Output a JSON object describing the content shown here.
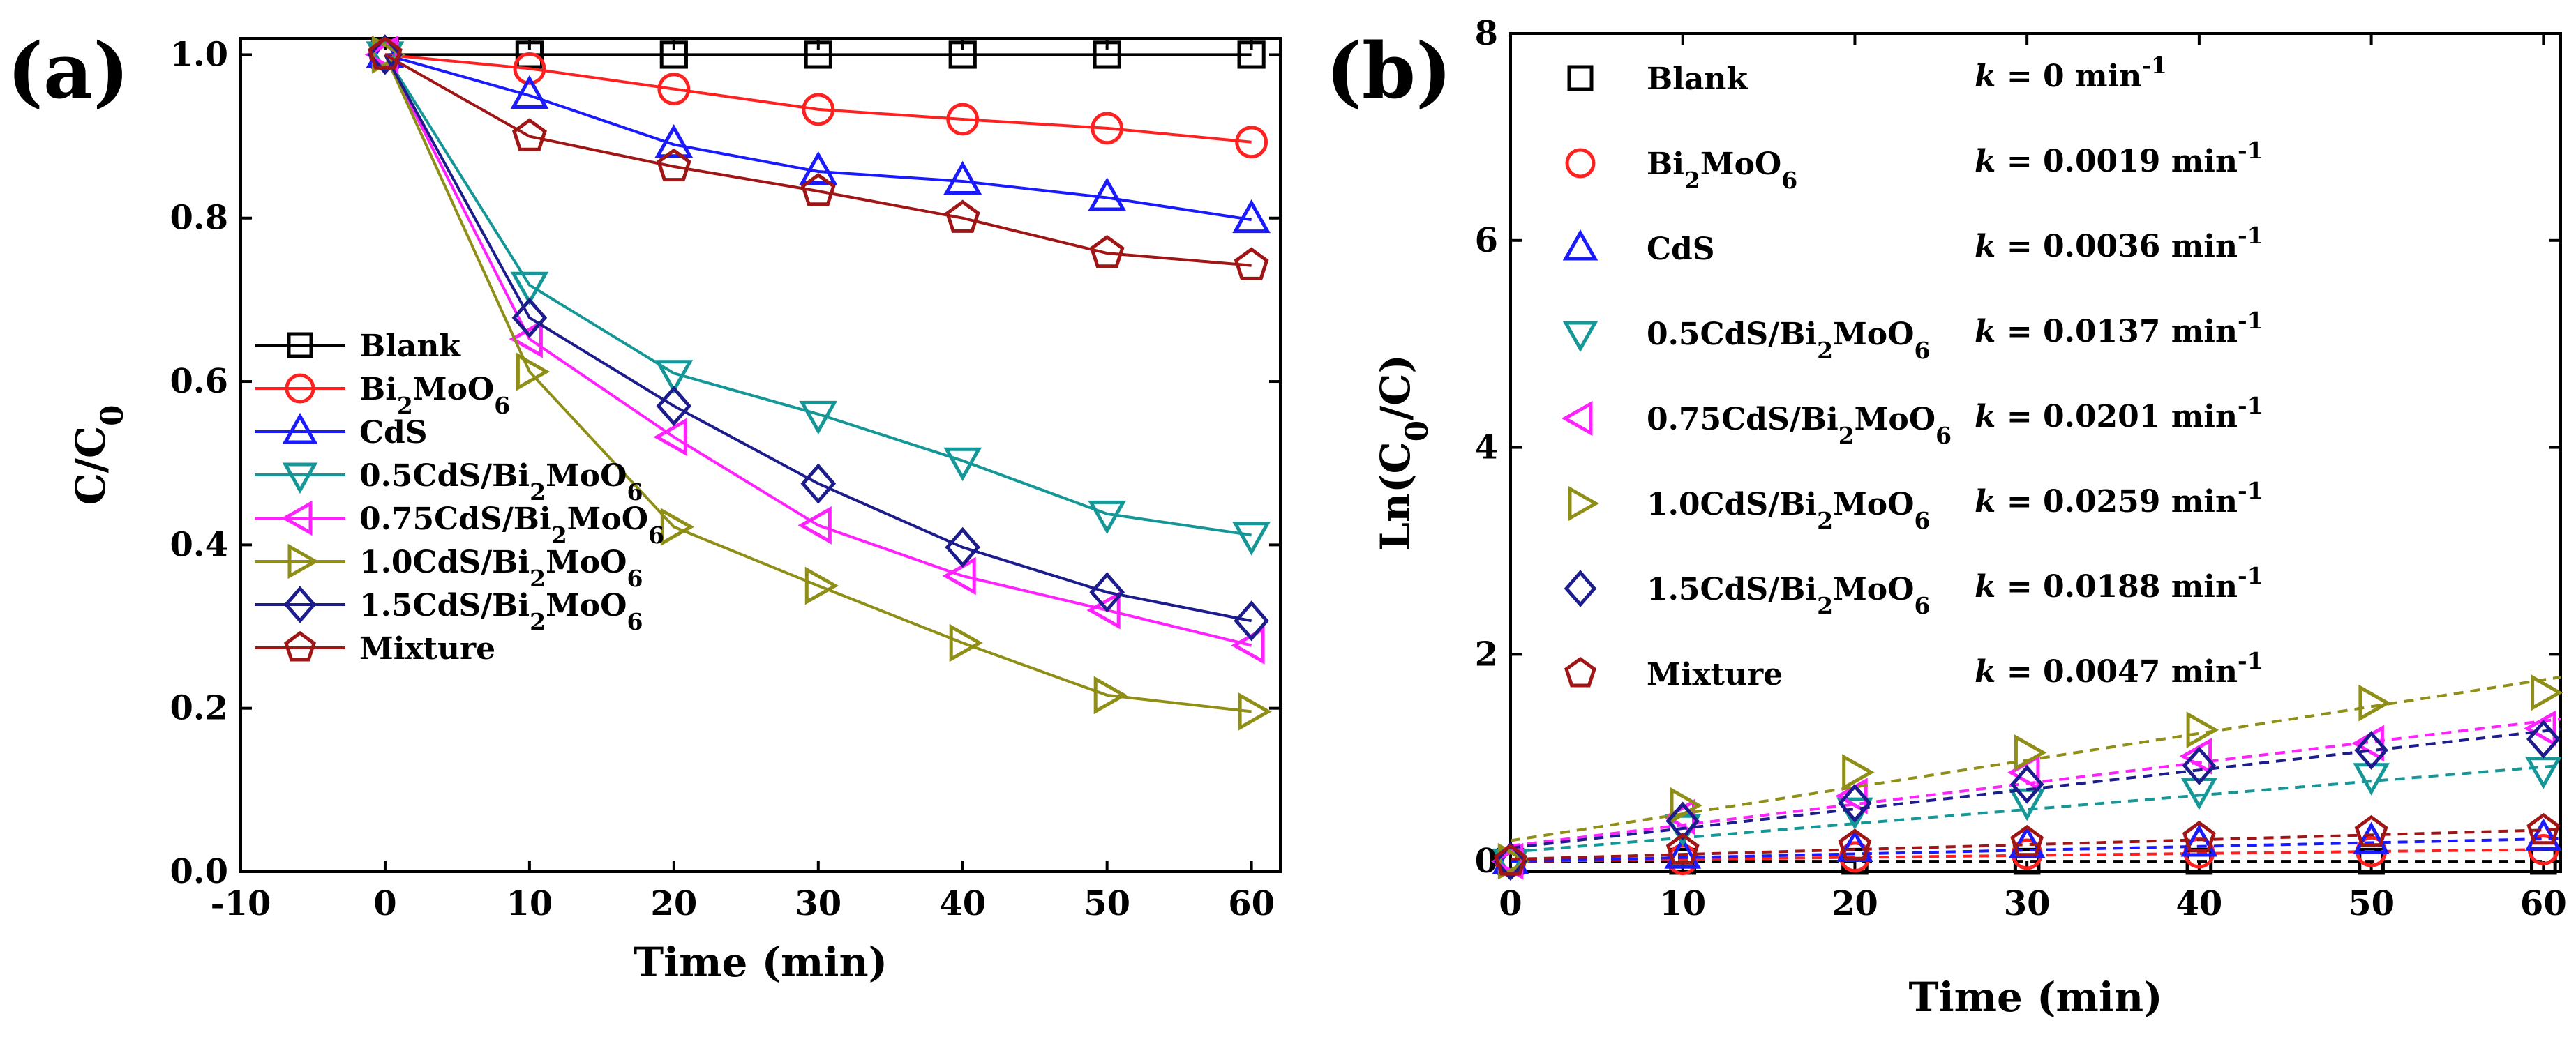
{
  "chart_data": [
    {
      "type": "line",
      "panel_label": "(a)",
      "title": "",
      "xlabel": "Time (min)",
      "ylabel_main": "C/C",
      "ylabel_sub": "0",
      "xlim": [
        -10,
        62
      ],
      "ylim": [
        0.0,
        1.02
      ],
      "xticks": [
        -10,
        0,
        10,
        20,
        30,
        40,
        50,
        60
      ],
      "yticks": [
        0.0,
        0.2,
        0.4,
        0.6,
        0.8,
        1.0
      ],
      "xtick_labels": [
        "-10",
        "0",
        "10",
        "20",
        "30",
        "40",
        "50",
        "60"
      ],
      "ytick_labels": [
        "0.0",
        "0.2",
        "0.4",
        "0.6",
        "0.8",
        "1.0"
      ],
      "x": [
        0,
        10,
        20,
        30,
        40,
        50,
        60
      ],
      "legend_position": "center-left",
      "series": [
        {
          "name": "Blank",
          "name_parts": [
            [
              "Blank",
              "n"
            ]
          ],
          "color": "#000000",
          "marker": "square",
          "values": [
            1.0,
            1.0,
            1.0,
            1.0,
            1.0,
            1.0,
            1.0
          ]
        },
        {
          "name": "Bi2MoO6",
          "name_parts": [
            [
              "Bi",
              "n"
            ],
            [
              "2",
              "s"
            ],
            [
              "MoO",
              "n"
            ],
            [
              "6",
              "s"
            ]
          ],
          "color": "#ff2020",
          "marker": "circle",
          "values": [
            1.0,
            0.983,
            0.958,
            0.933,
            0.921,
            0.91,
            0.893
          ]
        },
        {
          "name": "CdS",
          "name_parts": [
            [
              "CdS",
              "n"
            ]
          ],
          "color": "#1a1aff",
          "marker": "triangle-up",
          "values": [
            1.0,
            0.95,
            0.89,
            0.857,
            0.845,
            0.825,
            0.798
          ]
        },
        {
          "name": "0.5CdS/Bi2MoO6",
          "name_parts": [
            [
              "0.5CdS/Bi",
              "n"
            ],
            [
              "2",
              "s"
            ],
            [
              "MoO",
              "n"
            ],
            [
              "6",
              "s"
            ]
          ],
          "color": "#159797",
          "marker": "triangle-down",
          "values": [
            1.0,
            0.718,
            0.61,
            0.56,
            0.503,
            0.438,
            0.412
          ]
        },
        {
          "name": "0.75CdS/Bi2MoO6",
          "name_parts": [
            [
              "0.75CdS/Bi",
              "n"
            ],
            [
              "2",
              "s"
            ],
            [
              "MoO",
              "n"
            ],
            [
              "6",
              "s"
            ]
          ],
          "color": "#ff22ff",
          "marker": "triangle-left",
          "values": [
            1.0,
            0.652,
            0.532,
            0.424,
            0.362,
            0.32,
            0.277
          ]
        },
        {
          "name": "1.0CdS/Bi2MoO6",
          "name_parts": [
            [
              "1.0CdS/Bi",
              "n"
            ],
            [
              "2",
              "s"
            ],
            [
              "MoO",
              "n"
            ],
            [
              "6",
              "s"
            ]
          ],
          "color": "#8f8f17",
          "marker": "triangle-right",
          "values": [
            1.0,
            0.612,
            0.422,
            0.35,
            0.28,
            0.216,
            0.196
          ]
        },
        {
          "name": "1.5CdS/Bi2MoO6",
          "name_parts": [
            [
              "1.5CdS/Bi",
              "n"
            ],
            [
              "2",
              "s"
            ],
            [
              "MoO",
              "n"
            ],
            [
              "6",
              "s"
            ]
          ],
          "color": "#1c1c8c",
          "marker": "diamond",
          "values": [
            1.0,
            0.678,
            0.57,
            0.475,
            0.397,
            0.342,
            0.307
          ]
        },
        {
          "name": "Mixture",
          "name_parts": [
            [
              "Mixture",
              "n"
            ]
          ],
          "color": "#a01515",
          "marker": "pentagon",
          "values": [
            1.0,
            0.9,
            0.863,
            0.833,
            0.8,
            0.757,
            0.742
          ]
        }
      ]
    },
    {
      "type": "scatter",
      "panel_label": "(b)",
      "title": "",
      "xlabel": "Time (min)",
      "ylabel_parts": [
        [
          "Ln(C",
          "n"
        ],
        [
          "0",
          "s"
        ],
        [
          "/C)",
          "n"
        ]
      ],
      "xlim": [
        0,
        61
      ],
      "ylim": [
        -0.1,
        8
      ],
      "xticks": [
        0,
        10,
        20,
        30,
        40,
        50,
        60
      ],
      "yticks": [
        0,
        2,
        4,
        6,
        8
      ],
      "xtick_labels": [
        "0",
        "10",
        "20",
        "30",
        "40",
        "50",
        "60"
      ],
      "ytick_labels": [
        "0",
        "2",
        "4",
        "6",
        "8"
      ],
      "x": [
        0,
        10,
        20,
        30,
        40,
        50,
        60
      ],
      "legend_position": "top-left",
      "k_unit": "min",
      "k_exponent": "-1",
      "series": [
        {
          "name": "Blank",
          "name_parts": [
            [
              "Blank",
              "n"
            ]
          ],
          "color": "#000000",
          "marker": "square",
          "k_label": "k",
          "k_value": "= 0",
          "fit": {
            "slope": 0.0,
            "intercept": 0.0
          },
          "values": [
            0.0,
            0.0,
            0.0,
            0.0,
            0.0,
            0.0,
            0.0
          ]
        },
        {
          "name": "Bi2MoO6",
          "name_parts": [
            [
              "Bi",
              "n"
            ],
            [
              "2",
              "s"
            ],
            [
              "MoO",
              "n"
            ],
            [
              "6",
              "s"
            ]
          ],
          "color": "#ff2020",
          "marker": "circle",
          "k_label": "k",
          "k_value": "= 0.0019",
          "fit": {
            "slope": 0.0019,
            "intercept": 0.0
          },
          "values": [
            0.0,
            0.017,
            0.043,
            0.069,
            0.082,
            0.094,
            0.113
          ]
        },
        {
          "name": "CdS",
          "name_parts": [
            [
              "CdS",
              "n"
            ]
          ],
          "color": "#1a1aff",
          "marker": "triangle-up",
          "k_label": "k",
          "k_value": "= 0.0036",
          "fit": {
            "slope": 0.0036,
            "intercept": 0.0
          },
          "values": [
            0.0,
            0.051,
            0.117,
            0.154,
            0.168,
            0.192,
            0.226
          ]
        },
        {
          "name": "0.5CdS/Bi2MoO6",
          "name_parts": [
            [
              "0.5CdS/Bi",
              "n"
            ],
            [
              "2",
              "s"
            ],
            [
              "MoO",
              "n"
            ],
            [
              "6",
              "s"
            ]
          ],
          "color": "#159797",
          "marker": "triangle-down",
          "k_label": "k",
          "k_value": "= 0.0137",
          "fit": {
            "slope": 0.0137,
            "intercept": 0.09
          },
          "values": [
            0.0,
            0.331,
            0.494,
            0.58,
            0.687,
            0.826,
            0.887
          ]
        },
        {
          "name": "0.75CdS/Bi2MoO6",
          "name_parts": [
            [
              "0.75CdS/Bi",
              "n"
            ],
            [
              "2",
              "s"
            ],
            [
              "MoO",
              "n"
            ],
            [
              "6",
              "s"
            ]
          ],
          "color": "#ff22ff",
          "marker": "triangle-left",
          "k_label": "k",
          "k_value": "= 0.0201",
          "fit": {
            "slope": 0.0201,
            "intercept": 0.15
          },
          "values": [
            0.0,
            0.428,
            0.631,
            0.858,
            1.016,
            1.14,
            1.284
          ]
        },
        {
          "name": "1.0CdS/Bi2MoO6",
          "name_parts": [
            [
              "1.0CdS/Bi",
              "n"
            ],
            [
              "2",
              "s"
            ],
            [
              "MoO",
              "n"
            ],
            [
              "6",
              "s"
            ]
          ],
          "color": "#8f8f17",
          "marker": "triangle-right",
          "k_label": "k",
          "k_value": "= 0.0259",
          "fit": {
            "slope": 0.0259,
            "intercept": 0.2
          },
          "values": [
            0.0,
            0.54,
            0.86,
            1.05,
            1.27,
            1.53,
            1.63
          ]
        },
        {
          "name": "1.5CdS/Bi2MoO6",
          "name_parts": [
            [
              "1.5CdS/Bi",
              "n"
            ],
            [
              "2",
              "s"
            ],
            [
              "MoO",
              "n"
            ],
            [
              "6",
              "s"
            ]
          ],
          "color": "#1c1c8c",
          "marker": "diamond",
          "k_label": "k",
          "k_value": "= 0.0188",
          "fit": {
            "slope": 0.0188,
            "intercept": 0.13
          },
          "values": [
            0.0,
            0.389,
            0.562,
            0.744,
            0.924,
            1.073,
            1.181
          ]
        },
        {
          "name": "Mixture",
          "name_parts": [
            [
              "Mixture",
              "n"
            ]
          ],
          "color": "#a01515",
          "marker": "pentagon",
          "k_label": "k",
          "k_value": "= 0.0047",
          "fit": {
            "slope": 0.0047,
            "intercept": 0.02
          },
          "values": [
            0.0,
            0.105,
            0.147,
            0.183,
            0.223,
            0.278,
            0.298
          ]
        }
      ]
    }
  ]
}
